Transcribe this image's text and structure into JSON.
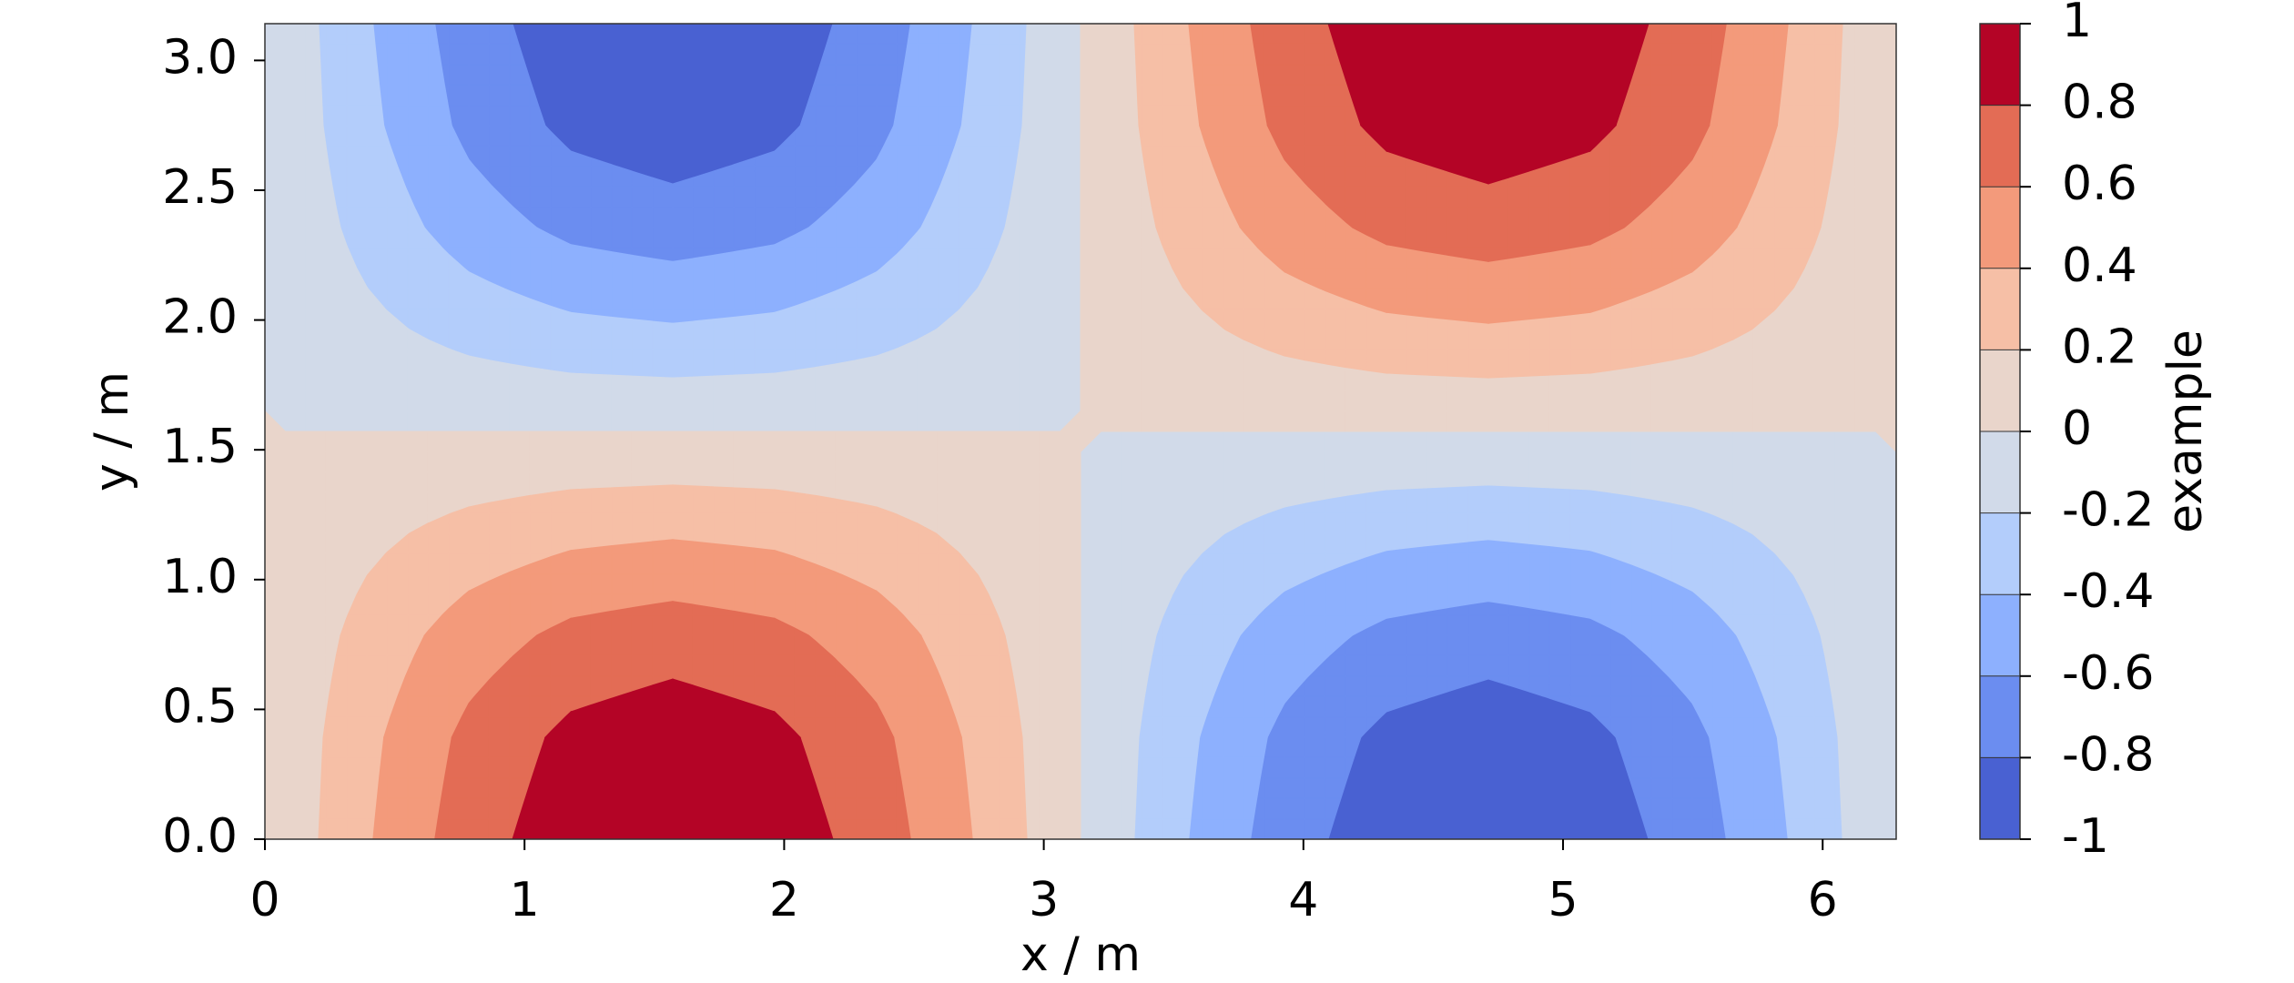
{
  "chart_data": {
    "type": "contourf",
    "x_label": "x / m",
    "y_label": "y / m",
    "colorbar_label": "example",
    "x": [
      0,
      0.3927,
      0.7854,
      1.1781,
      1.5708,
      1.9635,
      2.3562,
      2.7489,
      3.1416,
      3.5343,
      3.927,
      4.3197,
      4.7124,
      5.1051,
      5.4978,
      5.8905,
      6.2832
    ],
    "y": [
      0,
      0.3927,
      0.7854,
      1.1781,
      1.5708,
      1.9635,
      2.3562,
      2.7489,
      3.1416
    ],
    "z": [
      [
        0,
        0.38,
        0.71,
        0.92,
        1,
        0.92,
        0.71,
        0.38,
        0,
        -0.38,
        -0.71,
        -0.92,
        -1,
        -0.92,
        -0.71,
        -0.38,
        0
      ],
      [
        0,
        0.35,
        0.65,
        0.85,
        0.92,
        0.85,
        0.65,
        0.35,
        0,
        -0.35,
        -0.65,
        -0.85,
        -0.92,
        -0.85,
        -0.65,
        -0.35,
        0
      ],
      [
        0,
        0.27,
        0.5,
        0.65,
        0.71,
        0.65,
        0.5,
        0.27,
        0,
        -0.27,
        -0.5,
        -0.65,
        -0.71,
        -0.65,
        -0.5,
        -0.27,
        0
      ],
      [
        0,
        0.15,
        0.27,
        0.35,
        0.38,
        0.35,
        0.27,
        0.15,
        0,
        -0.15,
        -0.27,
        -0.35,
        -0.38,
        -0.35,
        -0.27,
        -0.15,
        0
      ],
      [
        0,
        0,
        0,
        0,
        0,
        0,
        0,
        0,
        0,
        0,
        0,
        0,
        0,
        0,
        0,
        0,
        0
      ],
      [
        0,
        -0.15,
        -0.27,
        -0.35,
        -0.38,
        -0.35,
        -0.27,
        -0.15,
        0,
        0.15,
        0.27,
        0.35,
        0.38,
        0.35,
        0.27,
        0.15,
        0
      ],
      [
        0,
        -0.27,
        -0.5,
        -0.65,
        -0.71,
        -0.65,
        -0.5,
        -0.27,
        0,
        0.27,
        0.5,
        0.65,
        0.71,
        0.65,
        0.5,
        0.27,
        0
      ],
      [
        0,
        -0.35,
        -0.65,
        -0.85,
        -0.92,
        -0.85,
        -0.65,
        -0.35,
        0,
        0.35,
        0.65,
        0.85,
        0.92,
        0.85,
        0.65,
        0.35,
        0
      ],
      [
        0,
        -0.38,
        -0.71,
        -0.92,
        -1,
        -0.92,
        -0.71,
        -0.38,
        0,
        0.38,
        0.71,
        0.92,
        1,
        0.92,
        0.71,
        0.38,
        0
      ]
    ],
    "levels": [
      -1,
      -0.8,
      -0.6,
      -0.4,
      -0.2,
      0,
      0.2,
      0.4,
      0.6,
      0.8,
      1
    ],
    "colors": [
      "#4961d2",
      "#6b8df0",
      "#8db0fe",
      "#b3cdfb",
      "#d1dae9",
      "#e9d5cb",
      "#f6bfa6",
      "#f39a7b",
      "#e36c55",
      "#b40426"
    ],
    "xlim": [
      0,
      6.2832
    ],
    "ylim": [
      0,
      3.1416
    ],
    "xticks": [
      0,
      1,
      2,
      3,
      4,
      5,
      6
    ],
    "yticks": [
      {
        "value": 0,
        "label": "0.0"
      },
      0.5,
      {
        "value": 1,
        "label": "1.0"
      },
      1.5,
      {
        "value": 2,
        "label": "2.0"
      },
      2.5,
      {
        "value": 3,
        "label": "3.0"
      }
    ]
  }
}
